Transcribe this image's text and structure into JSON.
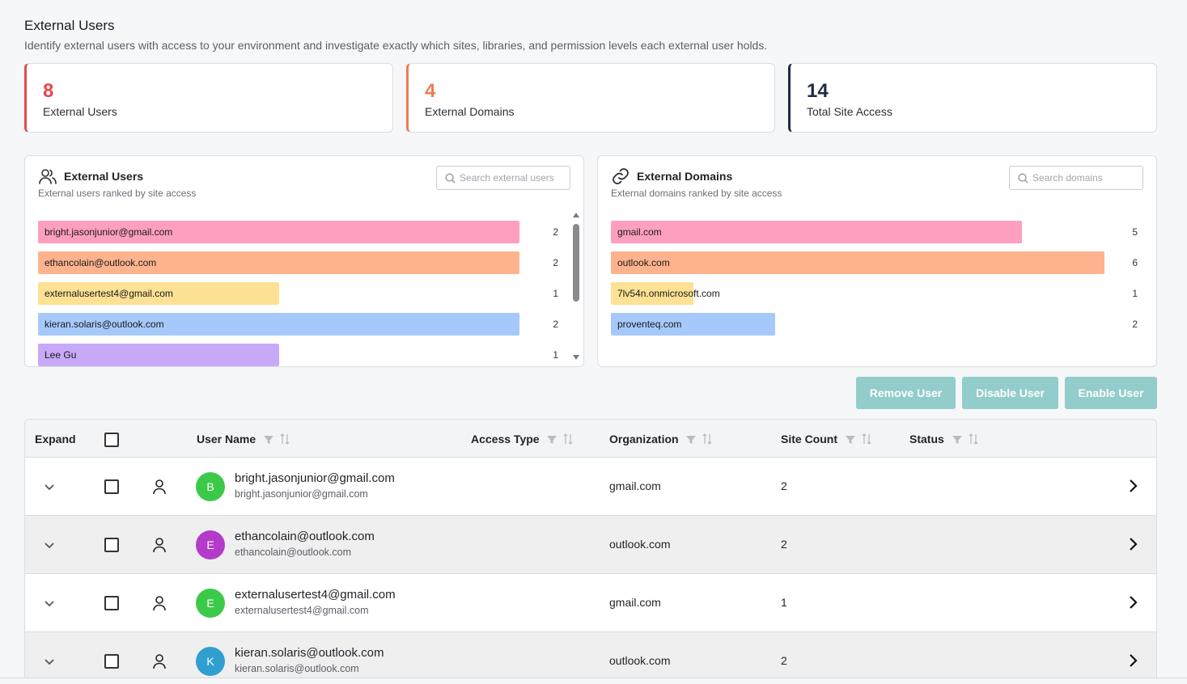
{
  "header": {
    "title": "External Users",
    "subtitle": "Identify external users with access to your environment and investigate exactly which sites, libraries, and permission levels each external user holds."
  },
  "stats": [
    {
      "value": "8",
      "label": "External Users",
      "color": "#e5484d"
    },
    {
      "value": "4",
      "label": "External Domains",
      "color": "#ee7b52"
    },
    {
      "value": "14",
      "label": "Total Site Access",
      "color": "#1f2a44"
    }
  ],
  "users_panel": {
    "title": "External Users",
    "subtitle": "External users ranked by site access",
    "search_placeholder": "Search external users",
    "max": 2,
    "items": [
      {
        "label": "bright.jasonjunior@gmail.com",
        "value": 2,
        "color": "#fe9fc0"
      },
      {
        "label": "ethancolain@outlook.com",
        "value": 2,
        "color": "#feb38e"
      },
      {
        "label": "externalusertest4@gmail.com",
        "value": 1,
        "color": "#fde194"
      },
      {
        "label": "kieran.solaris@outlook.com",
        "value": 2,
        "color": "#a6c9fc"
      },
      {
        "label": "Lee Gu",
        "value": 1,
        "color": "#c7a9f8"
      }
    ]
  },
  "domains_panel": {
    "title": "External Domains",
    "subtitle": "External domains ranked by site access",
    "search_placeholder": "Search domains",
    "max": 6,
    "items": [
      {
        "label": "gmail.com",
        "value": 5,
        "color": "#fe9fc0"
      },
      {
        "label": "outlook.com",
        "value": 6,
        "color": "#feb38e"
      },
      {
        "label": "7lv54n.onmicrosoft.com",
        "value": 1,
        "color": "#fde194"
      },
      {
        "label": "proventeq.com",
        "value": 2,
        "color": "#a6c9fc"
      }
    ]
  },
  "actions": {
    "remove": "Remove User",
    "disable": "Disable User",
    "enable": "Enable User"
  },
  "table": {
    "columns": {
      "expand": "Expand",
      "user_name": "User Name",
      "access_type": "Access Type",
      "organization": "Organization",
      "site_count": "Site Count",
      "status": "Status"
    },
    "rows": [
      {
        "initial": "B",
        "avatar_color": "#3cc94a",
        "name": "bright.jasonjunior@gmail.com",
        "email": "bright.jasonjunior@gmail.com",
        "organization": "gmail.com",
        "site_count": "2"
      },
      {
        "initial": "E",
        "avatar_color": "#b43ac9",
        "name": "ethancolain@outlook.com",
        "email": "ethancolain@outlook.com",
        "organization": "outlook.com",
        "site_count": "2"
      },
      {
        "initial": "E",
        "avatar_color": "#3cc94a",
        "name": "externalusertest4@gmail.com",
        "email": "externalusertest4@gmail.com",
        "organization": "gmail.com",
        "site_count": "1"
      },
      {
        "initial": "K",
        "avatar_color": "#2f9fd0",
        "name": "kieran.solaris@outlook.com",
        "email": "kieran.solaris@outlook.com",
        "organization": "outlook.com",
        "site_count": "2"
      }
    ]
  }
}
